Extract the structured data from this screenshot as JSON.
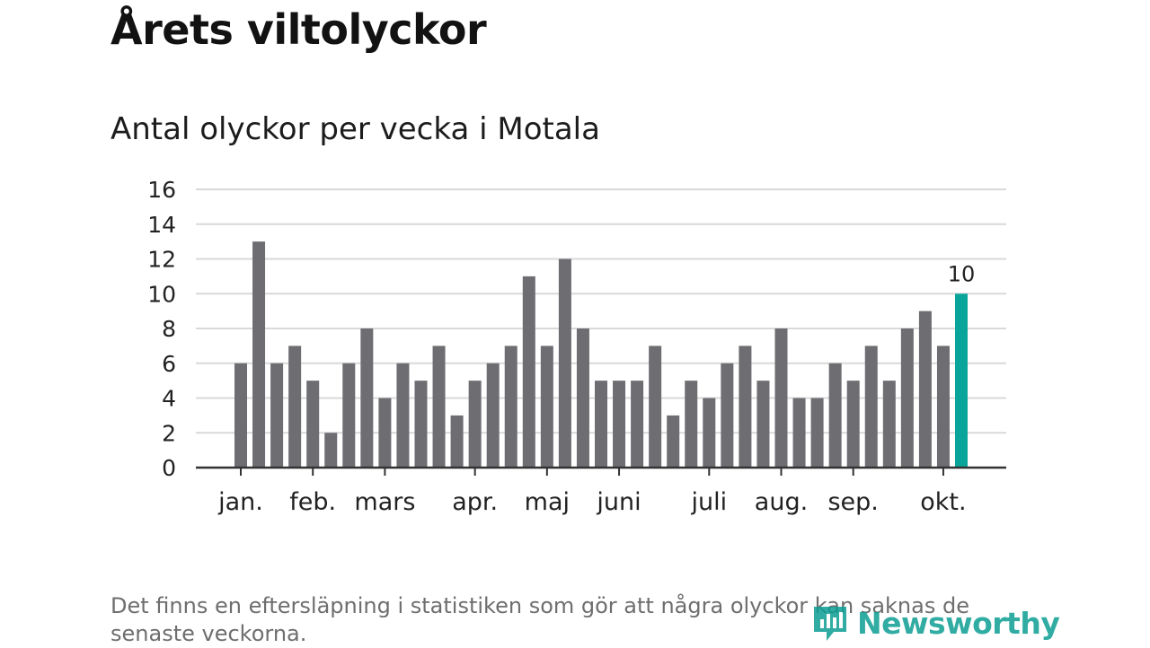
{
  "title": "Årets viltolyckor",
  "subtitle": "Antal olyckor per vecka i Motala",
  "footnote": "Det finns en eftersläpning i statistiken som gör att några olyckor kan saknas de senaste veckorna.",
  "logo": {
    "text": "Newsworthy",
    "icon": "newsworthy-logo-icon"
  },
  "colors": {
    "bar": "#6e6d72",
    "highlight": "#0aa59a",
    "grid": "#d9d9d9",
    "axis": "#333333"
  },
  "chart_data": {
    "type": "bar",
    "title": "Antal olyckor per vecka i Motala",
    "xlabel": "",
    "ylabel": "",
    "ylim": [
      0,
      16
    ],
    "yticks": [
      "0",
      "2",
      "4",
      "6",
      "8",
      "10",
      "12",
      "14",
      "16"
    ],
    "grid": true,
    "values": [
      6,
      13,
      6,
      7,
      5,
      2,
      6,
      8,
      4,
      6,
      5,
      7,
      3,
      5,
      6,
      7,
      11,
      7,
      12,
      8,
      5,
      5,
      5,
      7,
      3,
      5,
      4,
      6,
      7,
      5,
      8,
      4,
      4,
      6,
      5,
      7,
      5,
      8,
      9,
      7,
      10
    ],
    "highlight_index": 40,
    "highlight_label": "10",
    "month_labels": [
      {
        "label": "jan.",
        "week_index": 0
      },
      {
        "label": "feb.",
        "week_index": 4
      },
      {
        "label": "mars",
        "week_index": 8
      },
      {
        "label": "apr.",
        "week_index": 13
      },
      {
        "label": "maj",
        "week_index": 17
      },
      {
        "label": "juni",
        "week_index": 21
      },
      {
        "label": "juli",
        "week_index": 26
      },
      {
        "label": "aug.",
        "week_index": 30
      },
      {
        "label": "sep.",
        "week_index": 34
      },
      {
        "label": "okt.",
        "week_index": 39
      }
    ]
  }
}
